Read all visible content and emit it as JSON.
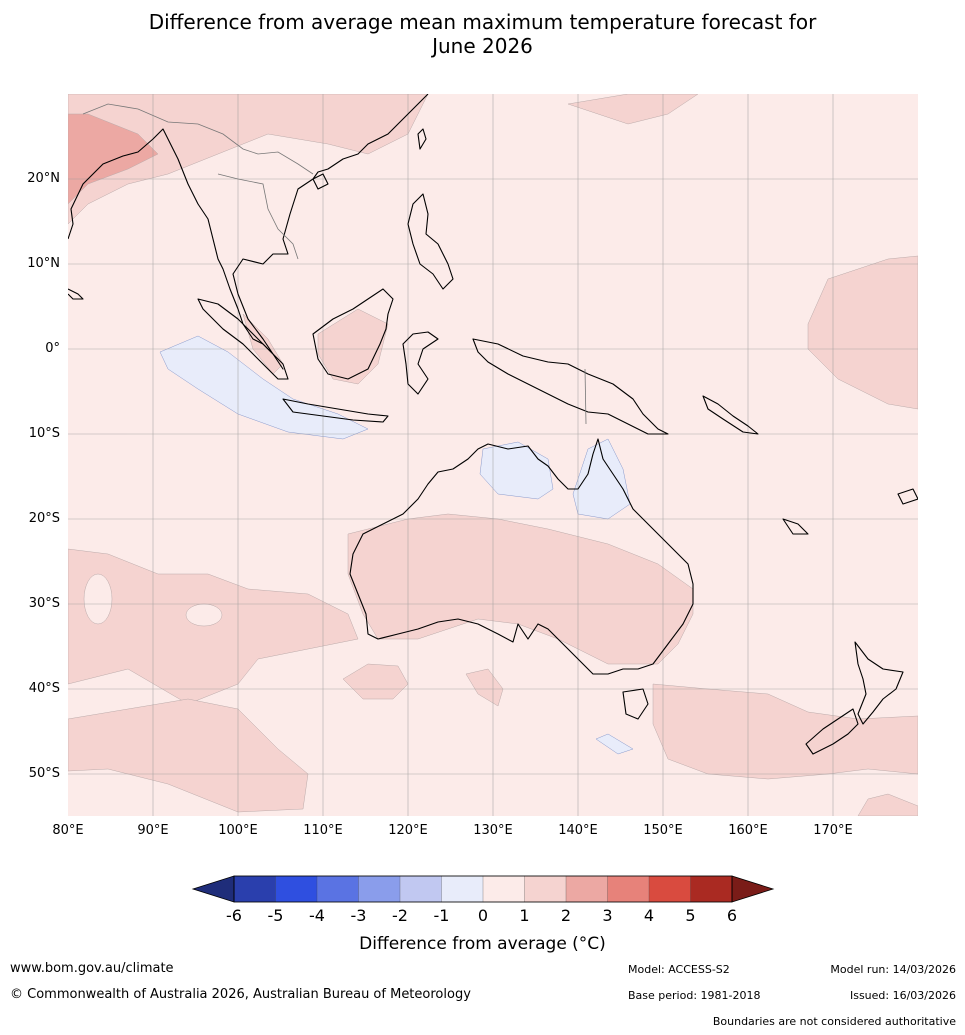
{
  "title_line1": "Difference from average mean maximum temperature forecast for",
  "title_line2": "June 2026",
  "lat_labels": [
    "20°N",
    "10°N",
    "0°",
    "10°S",
    "20°S",
    "30°S",
    "40°S",
    "50°S"
  ],
  "lon_labels": [
    "80°E",
    "90°E",
    "100°E",
    "110°E",
    "120°E",
    "130°E",
    "140°E",
    "150°E",
    "160°E",
    "170°E"
  ],
  "colorbar": {
    "ticks": [
      "-6",
      "-5",
      "-4",
      "-3",
      "-2",
      "-1",
      "0",
      "1",
      "2",
      "3",
      "4",
      "5",
      "6"
    ],
    "colors": [
      "#2a3fad",
      "#2f4fe0",
      "#5a73e3",
      "#8a9deb",
      "#c1c8f1",
      "#e8ecfa",
      "#fcebe9",
      "#f5d3d0",
      "#eca8a3",
      "#e7827a",
      "#d94b3f",
      "#aa2a22"
    ],
    "low_extend_color": "#1f2d7a",
    "high_extend_color": "#7a1c18",
    "label": "Difference from average (°C)"
  },
  "footer": {
    "website": "www.bom.gov.au/climate",
    "copyright": "© Commonwealth of Australia 2026, Australian Bureau of Meteorology",
    "model": "Model: ACCESS-S2",
    "base_period": "Base period: 1981-2018",
    "model_run": "Model run: 14/03/2026",
    "issued": "Issued: 16/03/2026",
    "disclaimer": "Boundaries are not considered authoritative"
  }
}
